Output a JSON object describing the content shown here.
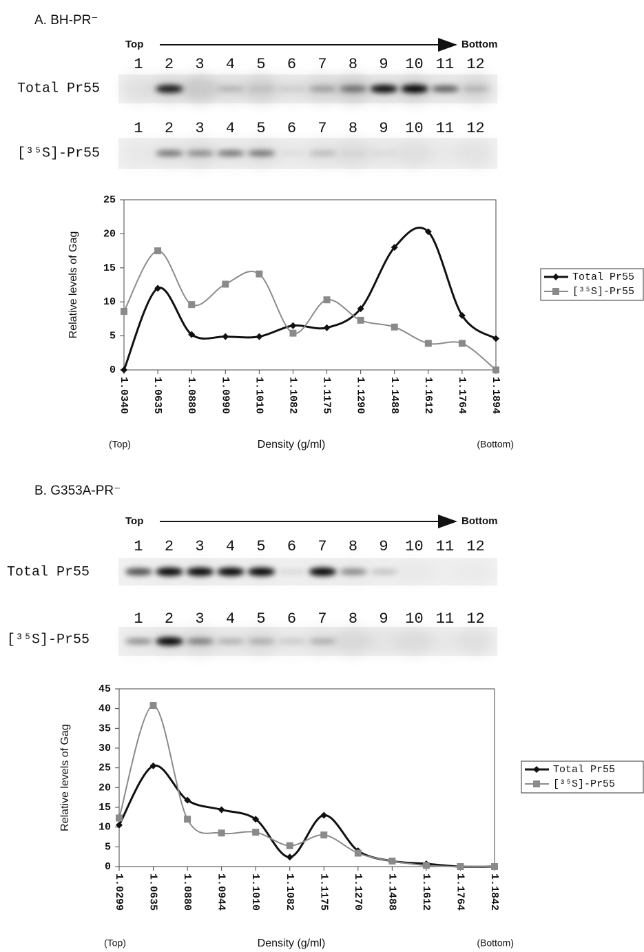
{
  "chart_data": [
    {
      "type": "line",
      "panel_label": "A. BH-PR⁻",
      "blot_arrow": [
        "Top",
        "Bottom"
      ],
      "blot_lanes": [
        1,
        2,
        3,
        4,
        5,
        6,
        7,
        8,
        9,
        10,
        11,
        12
      ],
      "blot_rows": [
        "Total Pr55",
        "[³⁵S]-Pr55"
      ],
      "y_label": "Relative levels of Gag",
      "x_label": "Density (g/ml)",
      "x_end_labels": [
        "(Top)",
        "(Bottom)"
      ],
      "categories": [
        "1.0340",
        "1.0635",
        "1.0880",
        "1.0990",
        "1.1010",
        "1.1082",
        "1.1175",
        "1.1290",
        "1.1488",
        "1.1612",
        "1.1764",
        "1.1894"
      ],
      "series": [
        {
          "name": "Total Pr55",
          "color": "#111111",
          "marker": "diamond",
          "values": [
            0,
            12,
            5.2,
            4.9,
            4.9,
            6.5,
            6.2,
            9,
            18,
            20.3,
            8,
            4.6
          ]
        },
        {
          "name": "[³⁵S]-Pr55",
          "color": "#8a8a8a",
          "marker": "square",
          "values": [
            8.6,
            17.5,
            9.6,
            12.6,
            14.1,
            5.4,
            10.3,
            7.3,
            6.3,
            3.9,
            3.9,
            0
          ]
        }
      ],
      "ylim": [
        0,
        25
      ],
      "yticks": [
        0,
        5,
        10,
        15,
        20,
        25
      ],
      "smooth": true,
      "legend": "right"
    },
    {
      "type": "line",
      "panel_label": "B. G353A-PR⁻",
      "blot_arrow": [
        "Top",
        "Bottom"
      ],
      "blot_lanes": [
        1,
        2,
        3,
        4,
        5,
        6,
        7,
        8,
        9,
        10,
        11,
        12
      ],
      "blot_rows": [
        "Total Pr55",
        "[³⁵S]-Pr55"
      ],
      "y_label": "Relative levels of Gag",
      "x_label": "Density (g/ml)",
      "x_end_labels": [
        "(Top)",
        "(Bottom)"
      ],
      "categories": [
        "1.0299",
        "1.0635",
        "1.0880",
        "1.0944",
        "1.1010",
        "1.1082",
        "1.1175",
        "1.1270",
        "1.1488",
        "1.1612",
        "1.1764",
        "1.1842"
      ],
      "series": [
        {
          "name": "Total Pr55",
          "color": "#111111",
          "marker": "diamond",
          "values": [
            10.5,
            25.5,
            16.8,
            14.4,
            12,
            2.4,
            13,
            4,
            1.4,
            0.7,
            0,
            0
          ]
        },
        {
          "name": "[³⁵S]-Pr55",
          "color": "#8a8a8a",
          "marker": "square",
          "values": [
            12.3,
            40.8,
            12,
            8.5,
            8.7,
            5.3,
            8,
            3.4,
            1.4,
            0.3,
            0,
            0
          ]
        }
      ],
      "ylim": [
        0,
        45
      ],
      "yticks": [
        0,
        5,
        10,
        15,
        20,
        25,
        30,
        35,
        40,
        45
      ],
      "smooth": true,
      "legend": "right"
    }
  ]
}
